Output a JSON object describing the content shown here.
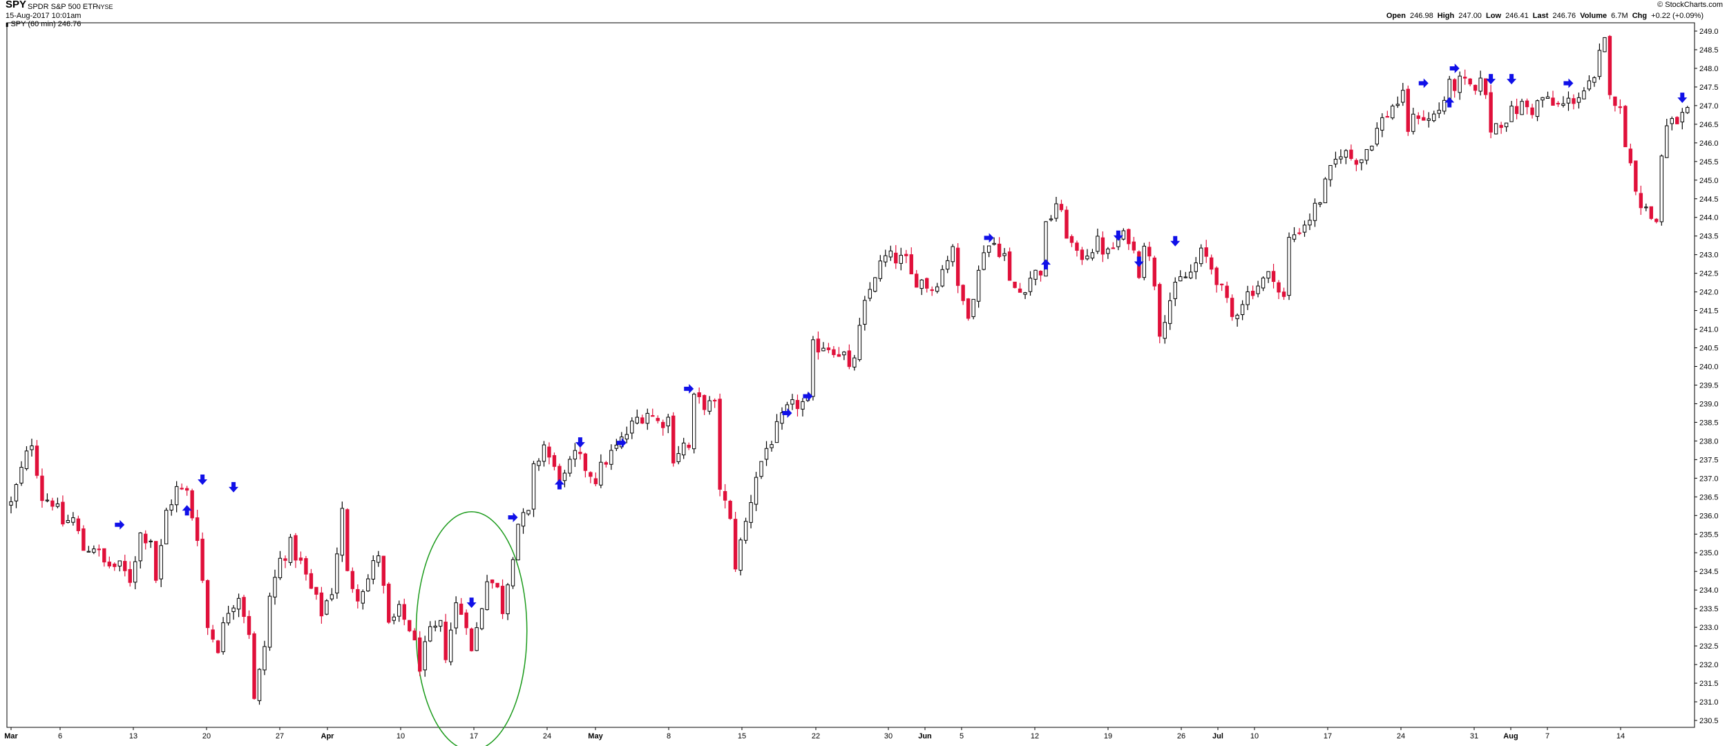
{
  "header": {
    "symbol": "SPY",
    "name": "SPDR S&P 500 ETF",
    "exchange": "NYSE",
    "datetime": "15-Aug-2017 10:01am",
    "series_label": "SPY (60 min) 246.76",
    "branding": "© StockCharts.com",
    "quote": {
      "open_label": "Open",
      "open": "246.98",
      "high_label": "High",
      "high": "247.00",
      "low_label": "Low",
      "low": "246.41",
      "last_label": "Last",
      "last": "246.76",
      "volume_label": "Volume",
      "volume": "6.7M",
      "chg_label": "Chg",
      "chg": "+0.22 (+0.09%)"
    }
  },
  "chart_data": {
    "type": "candlestick",
    "title": "SPY (60 min) 246.76",
    "ylim": [
      230.5,
      249.0
    ],
    "y_ticks": [
      "230.5",
      "231.0",
      "231.5",
      "232.0",
      "232.5",
      "233.0",
      "233.5",
      "234.0",
      "234.5",
      "235.0",
      "235.5",
      "236.0",
      "236.5",
      "237.0",
      "237.5",
      "238.0",
      "238.5",
      "239.0",
      "239.5",
      "240.0",
      "240.5",
      "241.0",
      "241.5",
      "242.0",
      "242.5",
      "243.0",
      "243.5",
      "244.0",
      "244.5",
      "245.0",
      "245.5",
      "246.0",
      "246.5",
      "247.0",
      "247.5",
      "248.0",
      "248.5",
      "249.0"
    ],
    "x_ticks": [
      "Mar",
      "6",
      "13",
      "20",
      "27",
      "Apr",
      "10",
      "17",
      "24",
      "May",
      "8",
      "15",
      "22",
      "30",
      "Jun",
      "5",
      "12",
      "19",
      "26",
      "Jul",
      "10",
      "17",
      "24",
      "31",
      "Aug",
      "7",
      "14"
    ],
    "grid": false,
    "up_color": "#000000",
    "down_color": "#e0103a",
    "arrow_color": "#1010e8",
    "ellipse_color": "#1a9a1a",
    "price_path": [
      [
        0,
        236.3
      ],
      [
        2,
        237.2
      ],
      [
        4,
        238.0
      ],
      [
        6,
        236.5
      ],
      [
        8,
        236.4
      ],
      [
        10,
        235.8
      ],
      [
        12,
        235.9
      ],
      [
        14,
        235.1
      ],
      [
        16,
        235.2
      ],
      [
        18,
        234.7
      ],
      [
        21,
        234.6
      ],
      [
        23,
        234.3
      ],
      [
        25,
        235.5
      ],
      [
        27,
        235.4
      ],
      [
        28,
        234.3
      ],
      [
        29,
        235.1
      ],
      [
        30,
        236.1
      ],
      [
        32,
        236.7
      ],
      [
        34,
        236.6
      ],
      [
        35,
        236.0
      ],
      [
        36,
        235.5
      ],
      [
        38,
        233.0
      ],
      [
        40,
        232.5
      ],
      [
        42,
        233.5
      ],
      [
        44,
        233.9
      ],
      [
        46,
        232.9
      ],
      [
        47,
        231.0
      ],
      [
        49,
        232.5
      ],
      [
        50,
        233.8
      ],
      [
        52,
        234.8
      ],
      [
        54,
        235.2
      ],
      [
        56,
        234.7
      ],
      [
        58,
        234.0
      ],
      [
        60,
        233.4
      ],
      [
        62,
        234.0
      ],
      [
        64,
        236.1
      ],
      [
        65,
        234.4
      ],
      [
        67,
        233.9
      ],
      [
        69,
        234.3
      ],
      [
        71,
        235.0
      ],
      [
        73,
        233.0
      ],
      [
        75,
        233.4
      ],
      [
        77,
        233.0
      ],
      [
        79,
        232.0
      ],
      [
        81,
        232.8
      ],
      [
        83,
        233.0
      ],
      [
        84,
        232.3
      ],
      [
        86,
        233.6
      ],
      [
        88,
        233.2
      ],
      [
        89,
        232.3
      ],
      [
        91,
        233.6
      ],
      [
        92,
        234.4
      ],
      [
        94,
        234.0
      ],
      [
        95,
        233.5
      ],
      [
        98,
        235.8
      ],
      [
        100,
        236.0
      ],
      [
        101,
        237.2
      ],
      [
        103,
        237.9
      ],
      [
        105,
        237.2
      ],
      [
        107,
        237.0
      ],
      [
        109,
        237.6
      ],
      [
        111,
        237.3
      ],
      [
        113,
        237.0
      ],
      [
        115,
        237.5
      ],
      [
        117,
        237.8
      ],
      [
        119,
        238.2
      ],
      [
        121,
        238.6
      ],
      [
        123,
        238.8
      ],
      [
        125,
        238.5
      ],
      [
        127,
        238.6
      ],
      [
        128,
        237.6
      ],
      [
        130,
        237.9
      ],
      [
        131,
        237.8
      ],
      [
        132,
        239.1
      ],
      [
        134,
        239.0
      ],
      [
        136,
        238.9
      ],
      [
        137,
        236.8
      ],
      [
        139,
        235.8
      ],
      [
        140,
        234.7
      ],
      [
        142,
        235.8
      ],
      [
        144,
        237.1
      ],
      [
        146,
        237.8
      ],
      [
        148,
        238.3
      ],
      [
        150,
        238.8
      ],
      [
        152,
        239.0
      ],
      [
        154,
        239.0
      ],
      [
        155,
        240.5
      ],
      [
        157,
        240.6
      ],
      [
        159,
        240.5
      ],
      [
        161,
        240.3
      ],
      [
        162,
        239.8
      ],
      [
        163,
        240.3
      ],
      [
        165,
        241.6
      ],
      [
        167,
        242.5
      ],
      [
        169,
        242.9
      ],
      [
        171,
        242.9
      ],
      [
        173,
        242.8
      ],
      [
        174,
        242.4
      ],
      [
        176,
        242.3
      ],
      [
        178,
        242.1
      ],
      [
        180,
        242.6
      ],
      [
        182,
        243.3
      ],
      [
        183,
        242.0
      ],
      [
        185,
        241.5
      ],
      [
        187,
        242.5
      ],
      [
        188,
        243.2
      ],
      [
        190,
        243.3
      ],
      [
        192,
        243.0
      ],
      [
        193,
        242.2
      ],
      [
        195,
        242.0
      ],
      [
        197,
        242.4
      ],
      [
        199,
        242.6
      ],
      [
        200,
        243.7
      ],
      [
        202,
        244.4
      ],
      [
        204,
        243.6
      ],
      [
        206,
        242.9
      ],
      [
        208,
        243.1
      ],
      [
        210,
        243.3
      ],
      [
        212,
        243.0
      ],
      [
        214,
        243.4
      ],
      [
        216,
        243.5
      ],
      [
        218,
        242.6
      ],
      [
        219,
        243.4
      ],
      [
        221,
        242.3
      ],
      [
        222,
        241.0
      ],
      [
        224,
        241.8
      ],
      [
        226,
        242.3
      ],
      [
        228,
        242.5
      ],
      [
        230,
        243.0
      ],
      [
        231,
        242.9
      ],
      [
        233,
        242.4
      ],
      [
        234,
        242.0
      ],
      [
        236,
        241.3
      ],
      [
        238,
        241.8
      ],
      [
        240,
        242.1
      ],
      [
        242,
        242.3
      ],
      [
        244,
        242.5
      ],
      [
        245,
        242.0
      ],
      [
        246,
        241.8
      ],
      [
        247,
        243.4
      ],
      [
        249,
        243.7
      ],
      [
        251,
        244.0
      ],
      [
        253,
        244.5
      ],
      [
        255,
        245.2
      ],
      [
        257,
        245.8
      ],
      [
        259,
        245.6
      ],
      [
        261,
        245.6
      ],
      [
        263,
        246.1
      ],
      [
        265,
        246.6
      ],
      [
        267,
        247.0
      ],
      [
        269,
        247.2
      ],
      [
        270,
        246.4
      ],
      [
        272,
        246.8
      ],
      [
        274,
        246.6
      ],
      [
        276,
        246.9
      ],
      [
        278,
        247.5
      ],
      [
        280,
        247.6
      ],
      [
        282,
        247.5
      ],
      [
        283,
        247.2
      ],
      [
        284,
        247.9
      ],
      [
        286,
        246.4
      ],
      [
        288,
        246.6
      ],
      [
        290,
        246.8
      ],
      [
        292,
        247.0
      ],
      [
        294,
        246.9
      ],
      [
        296,
        247.2
      ],
      [
        298,
        247.0
      ],
      [
        300,
        247.0
      ],
      [
        302,
        247.2
      ],
      [
        304,
        247.4
      ],
      [
        306,
        247.6
      ],
      [
        307,
        248.3
      ],
      [
        308,
        248.7
      ],
      [
        309,
        247.5
      ],
      [
        311,
        246.8
      ],
      [
        313,
        245.4
      ],
      [
        315,
        244.4
      ],
      [
        317,
        244.0
      ],
      [
        318,
        243.9
      ],
      [
        319,
        245.7
      ],
      [
        320,
        246.4
      ],
      [
        322,
        246.6
      ],
      [
        324,
        246.8
      ]
    ],
    "markers": [
      {
        "type": "right",
        "t": 21,
        "p": 235.75
      },
      {
        "type": "up",
        "t": 34,
        "p": 236.15
      },
      {
        "type": "down",
        "t": 37,
        "p": 236.95
      },
      {
        "type": "down",
        "t": 43,
        "p": 236.75
      },
      {
        "type": "down",
        "t": 89,
        "p": 233.65
      },
      {
        "type": "right",
        "t": 97,
        "p": 235.95
      },
      {
        "type": "up",
        "t": 106,
        "p": 236.85
      },
      {
        "type": "down",
        "t": 110,
        "p": 237.95
      },
      {
        "type": "right",
        "t": 118,
        "p": 237.95
      },
      {
        "type": "right",
        "t": 131,
        "p": 239.4
      },
      {
        "type": "right",
        "t": 150,
        "p": 238.75
      },
      {
        "type": "right",
        "t": 154,
        "p": 239.2
      },
      {
        "type": "right",
        "t": 189,
        "p": 243.45
      },
      {
        "type": "up",
        "t": 200,
        "p": 242.75
      },
      {
        "type": "down",
        "t": 214,
        "p": 243.5
      },
      {
        "type": "down",
        "t": 218,
        "p": 242.8
      },
      {
        "type": "down",
        "t": 225,
        "p": 243.35
      },
      {
        "type": "right",
        "t": 273,
        "p": 247.6
      },
      {
        "type": "up",
        "t": 278,
        "p": 247.1
      },
      {
        "type": "right",
        "t": 279,
        "p": 248.0
      },
      {
        "type": "down",
        "t": 286,
        "p": 247.7
      },
      {
        "type": "down",
        "t": 290,
        "p": 247.7
      },
      {
        "type": "right",
        "t": 301,
        "p": 247.6
      },
      {
        "type": "down",
        "t": 323,
        "p": 247.2
      }
    ],
    "ellipse": {
      "t_center": 89,
      "p_center": 232.9,
      "t_radius": 10,
      "p_radius": 3.2
    }
  }
}
